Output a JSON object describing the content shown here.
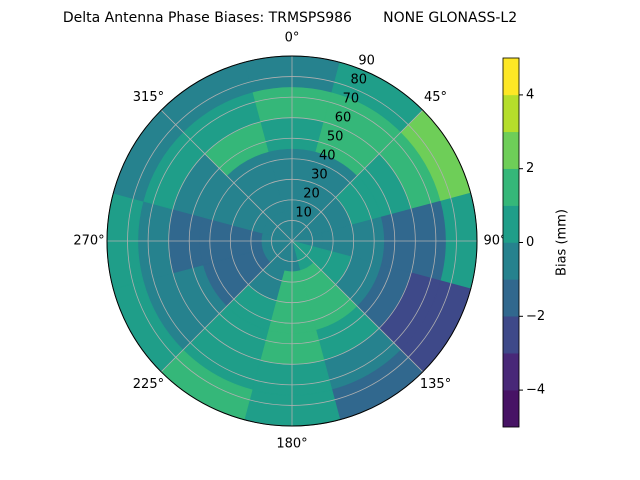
{
  "chart_data": {
    "type": "polar_contour",
    "title": "Delta Antenna Phase Biases: TRMSPS986       NONE GLONASS-L2",
    "theta_ticks": [
      {
        "value": 0,
        "label": "0°"
      },
      {
        "value": 45,
        "label": "45°"
      },
      {
        "value": 90,
        "label": "90°"
      },
      {
        "value": 135,
        "label": "135°"
      },
      {
        "value": 180,
        "label": "180°"
      },
      {
        "value": 225,
        "label": "225°"
      },
      {
        "value": 270,
        "label": "270°"
      },
      {
        "value": 315,
        "label": "315°"
      }
    ],
    "ylim": [
      0,
      90
    ],
    "yticks": [
      10,
      20,
      30,
      40,
      50,
      60,
      70,
      80,
      90
    ],
    "azimuth": [
      0,
      30,
      60,
      90,
      120,
      150,
      180,
      210,
      240,
      270,
      300,
      330
    ],
    "r_bins": [
      0,
      15,
      30,
      45,
      60,
      75,
      90
    ],
    "values": [
      [
        -0.5,
        -0.5,
        -0.5,
        -0.5,
        0.5,
        0.5,
        -0.5,
        -0.5,
        -0.5,
        -0.5,
        -0.5,
        -0.5
      ],
      [
        -0.5,
        -0.5,
        -0.5,
        -0.5,
        0.5,
        1.5,
        1.5,
        -0.5,
        -1.5,
        -1.5,
        -0.5,
        -0.5
      ],
      [
        -0.5,
        -0.5,
        0.5,
        -0.5,
        -0.5,
        1.5,
        1.5,
        0.5,
        -1.5,
        -1.5,
        -0.5,
        -0.5
      ],
      [
        0.5,
        1.5,
        0.5,
        -1.5,
        -1.5,
        0.5,
        1.5,
        0.5,
        -0.5,
        -1.5,
        -0.5,
        1.5
      ],
      [
        1.5,
        1.5,
        1.5,
        -1.5,
        -2.5,
        -0.5,
        0.5,
        0.5,
        -0.5,
        -0.5,
        0.5,
        0.5
      ],
      [
        -0.5,
        0.5,
        2.5,
        0.5,
        -2.5,
        -1.5,
        0.5,
        1.5,
        0.5,
        0.5,
        -0.5,
        -0.5
      ]
    ],
    "levels": [
      -5,
      -4,
      -3,
      -2,
      -1,
      0,
      1,
      2,
      3,
      4,
      5
    ],
    "colors": [
      "#471365",
      "#482878",
      "#3e4989",
      "#31688e",
      "#26828e",
      "#1f9e89",
      "#35b779",
      "#6ece58",
      "#b5de2b",
      "#fde725"
    ],
    "colorbar_lim": [
      -5,
      5
    ],
    "colorbar_ticks": [
      {
        "value": -4,
        "label": "−4"
      },
      {
        "value": -2,
        "label": "−2"
      },
      0,
      2,
      4
    ],
    "colorbar_label": "Bias (mm)",
    "grid": true
  }
}
